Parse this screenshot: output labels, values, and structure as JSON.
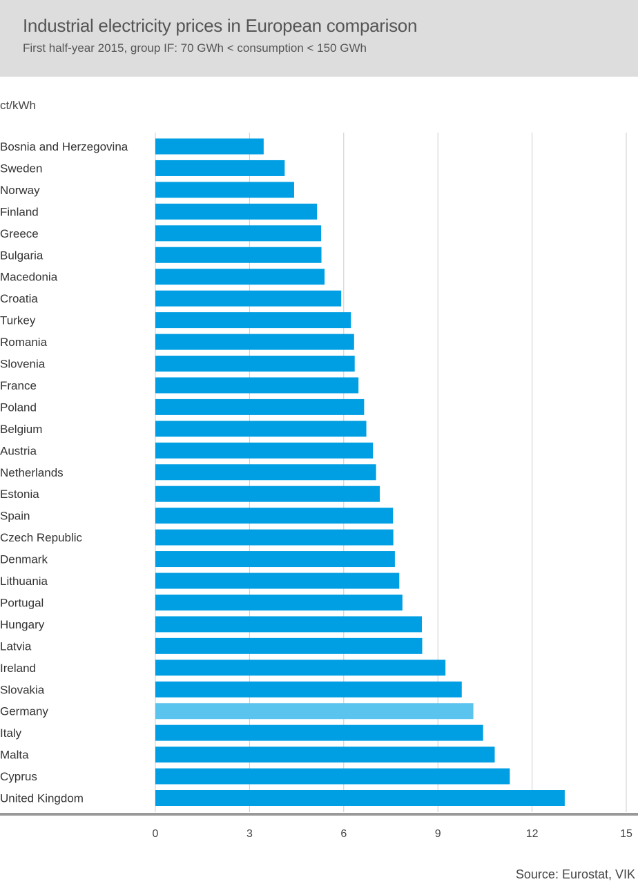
{
  "header": {
    "title": "Industrial electricity prices in European comparison",
    "subtitle": "First half-year 2015, group IF: 70 GWh < consumption < 150 GWh"
  },
  "unit_label": "ct/kWh",
  "source": "Source: Eurostat, VIK",
  "colors": {
    "bar": "#009ee3",
    "highlight": "#5bc4ee",
    "grid": "#cccccc",
    "axis": "#999999",
    "header_bg": "#dddddd"
  },
  "chart_data": {
    "type": "bar",
    "orientation": "horizontal",
    "title": "Industrial electricity prices in European comparison",
    "subtitle": "First half-year 2015, group IF: 70 GWh < consumption < 150 GWh",
    "xlabel": "ct/kWh",
    "xlim": [
      0,
      15
    ],
    "xticks": [
      0,
      3,
      6,
      9,
      12,
      15
    ],
    "grid": true,
    "highlighted_category": "Germany",
    "categories": [
      "Bosnia and Herzegovina",
      "Sweden",
      "Norway",
      "Finland",
      "Greece",
      "Bulgaria",
      "Macedonia",
      "Croatia",
      "Turkey",
      "Romania",
      "Slovenia",
      "France",
      "Poland",
      "Belgium",
      "Austria",
      "Netherlands",
      "Estonia",
      "Spain",
      "Czech Republic",
      "Denmark",
      "Lithuania",
      "Portugal",
      "Hungary",
      "Latvia",
      "Ireland",
      "Slovakia",
      "Germany",
      "Italy",
      "Malta",
      "Cyprus",
      "United Kingdom"
    ],
    "values": [
      3.45,
      4.12,
      4.42,
      5.15,
      5.28,
      5.29,
      5.39,
      5.92,
      6.23,
      6.33,
      6.35,
      6.47,
      6.65,
      6.72,
      6.93,
      7.03,
      7.15,
      7.57,
      7.58,
      7.63,
      7.77,
      7.87,
      8.49,
      8.5,
      9.24,
      9.76,
      10.13,
      10.44,
      10.81,
      11.29,
      13.04
    ]
  }
}
